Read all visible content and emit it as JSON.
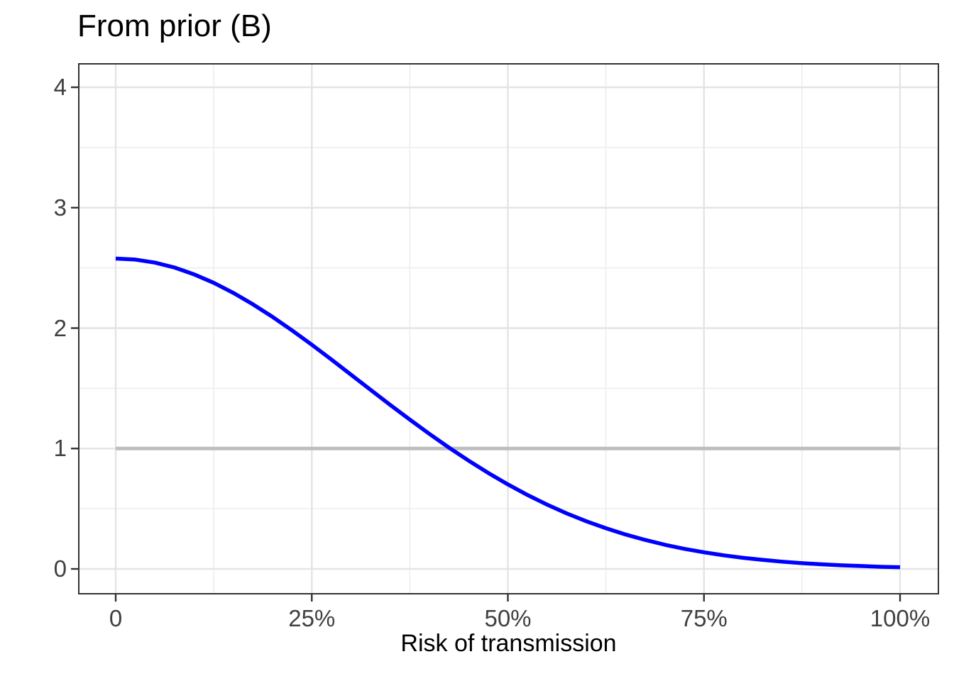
{
  "chart": {
    "title": "From prior (B)",
    "x_axis": {
      "label": "Risk of transmission",
      "ticks": [
        {
          "value": 0.0,
          "label": "0"
        },
        {
          "value": 0.25,
          "label": "25%"
        },
        {
          "value": 0.5,
          "label": "50%"
        },
        {
          "value": 0.75,
          "label": "75%"
        },
        {
          "value": 1.0,
          "label": "100%"
        }
      ],
      "minor_ticks": [
        0.125,
        0.375,
        0.625,
        0.875
      ]
    },
    "y_axis": {
      "label": "",
      "ticks": [
        {
          "value": 0,
          "label": "0"
        },
        {
          "value": 1,
          "label": "1"
        },
        {
          "value": 2,
          "label": "2"
        },
        {
          "value": 3,
          "label": "3"
        },
        {
          "value": 4,
          "label": "4"
        }
      ],
      "minor_ticks": [
        0.5,
        1.5,
        2.5,
        3.5
      ]
    }
  },
  "chart_data": {
    "type": "line",
    "title": "From prior (B)",
    "xlabel": "Risk of transmission",
    "ylabel": "",
    "xlim": [
      -0.047,
      1.047
    ],
    "ylim": [
      -0.21,
      4.19
    ],
    "x_tick_labels": [
      "0",
      "25%",
      "50%",
      "75%",
      "100%"
    ],
    "y_tick_labels": [
      "0",
      "1",
      "2",
      "3",
      "4"
    ],
    "grid": "major and minor gridlines, light grey on white panel, dark panel border",
    "legend": "none",
    "series": [
      {
        "id": "reference-line",
        "name": "reference line at density 1",
        "color": "#BEBEBE",
        "width": 5,
        "x": [
          0,
          1
        ],
        "y": [
          1,
          1
        ]
      },
      {
        "id": "prior-density-curve",
        "name": "prior density (B), half-normal-shaped, f(0)≈2.58 decreasing to ≈0.01 at 100%, crosses 1 near 43%",
        "color": "#0000FF",
        "width": 5.5,
        "x": [
          0,
          0.025,
          0.05,
          0.075,
          0.1,
          0.125,
          0.15,
          0.175,
          0.2,
          0.225,
          0.25,
          0.275,
          0.3,
          0.325,
          0.35,
          0.375,
          0.4,
          0.425,
          0.45,
          0.475,
          0.5,
          0.525,
          0.55,
          0.575,
          0.6,
          0.625,
          0.65,
          0.675,
          0.7,
          0.725,
          0.75,
          0.775,
          0.8,
          0.825,
          0.85,
          0.875,
          0.9,
          0.925,
          0.95,
          0.975,
          1.0
        ],
        "y": [
          2.577,
          2.569,
          2.544,
          2.503,
          2.446,
          2.376,
          2.292,
          2.197,
          2.093,
          1.98,
          1.862,
          1.739,
          1.613,
          1.487,
          1.362,
          1.24,
          1.121,
          1.007,
          0.899,
          0.797,
          0.702,
          0.614,
          0.534,
          0.461,
          0.396,
          0.338,
          0.286,
          0.241,
          0.201,
          0.167,
          0.138,
          0.113,
          0.092,
          0.075,
          0.06,
          0.048,
          0.038,
          0.03,
          0.024,
          0.018,
          0.014
        ]
      }
    ]
  },
  "colors": {
    "background": "#FFFFFF",
    "panel_background": "#FFFFFF",
    "panel_border": "#333333",
    "grid_major": "#E4E4E4",
    "grid_minor": "#EDEDED",
    "tick_mark": "#333333",
    "tick_label": "#404040",
    "title": "#000000",
    "axis_title": "#000000",
    "curve": "#0000FF",
    "reference_line": "#BEBEBE"
  }
}
